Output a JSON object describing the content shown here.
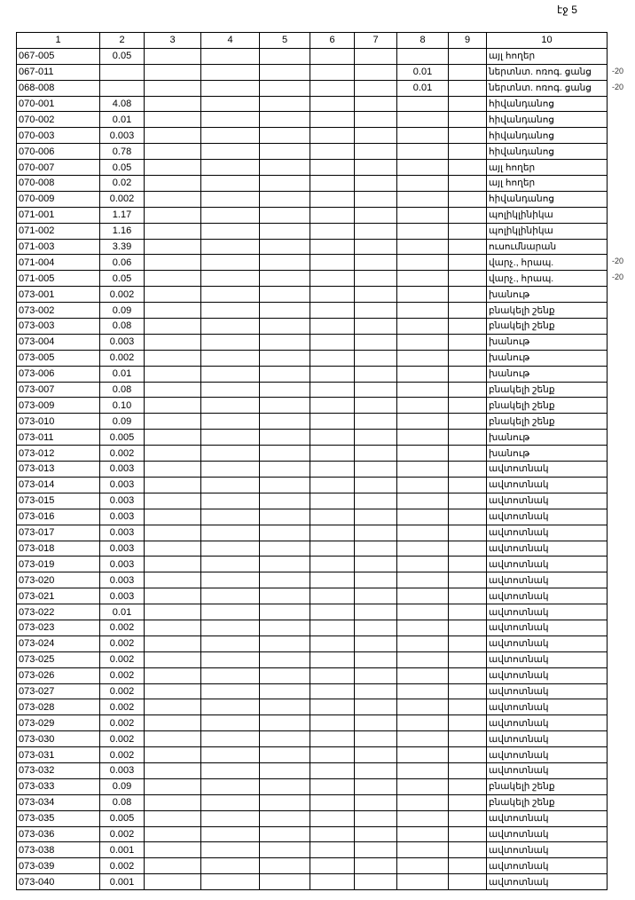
{
  "page_label": "էջ 5",
  "columns": [
    "1",
    "2",
    "3",
    "4",
    "5",
    "6",
    "7",
    "8",
    "9",
    "10"
  ],
  "rows": [
    {
      "id": "067-005",
      "c2": "0.05",
      "c8": "",
      "c10": "այլ հողեր"
    },
    {
      "id": "067-011",
      "c2": "",
      "c8": "0.01",
      "c10": "ներտնտ. ոռոգ. ցանց",
      "note": "-20"
    },
    {
      "id": "068-008",
      "c2": "",
      "c8": "0.01",
      "c10": "ներտնտ. ոռոգ. ցանց",
      "note": "-20"
    },
    {
      "id": "070-001",
      "c2": "4.08",
      "c8": "",
      "c10": "հիվանդանոց"
    },
    {
      "id": "070-002",
      "c2": "0.01",
      "c8": "",
      "c10": "հիվանդանոց"
    },
    {
      "id": "070-003",
      "c2": "0.003",
      "c8": "",
      "c10": "հիվանդանոց"
    },
    {
      "id": "070-006",
      "c2": "0.78",
      "c8": "",
      "c10": "հիվանդանոց"
    },
    {
      "id": "070-007",
      "c2": "0.05",
      "c8": "",
      "c10": "այլ հողեր"
    },
    {
      "id": "070-008",
      "c2": "0.02",
      "c8": "",
      "c10": "այլ հողեր"
    },
    {
      "id": "070-009",
      "c2": "0.002",
      "c8": "",
      "c10": "հիվանդանոց"
    },
    {
      "id": "071-001",
      "c2": "1.17",
      "c8": "",
      "c10": "պոլիկլինիկա"
    },
    {
      "id": "071-002",
      "c2": "1.16",
      "c8": "",
      "c10": "պոլիկլինիկա"
    },
    {
      "id": "071-003",
      "c2": "3.39",
      "c8": "",
      "c10": "ուսումնարան"
    },
    {
      "id": "071-004",
      "c2": "0.06",
      "c8": "",
      "c10": "վարչ., հրապ.",
      "note": "-20"
    },
    {
      "id": "071-005",
      "c2": "0.05",
      "c8": "",
      "c10": "վարչ., հրապ.",
      "note": "-20"
    },
    {
      "id": "073-001",
      "c2": "0.002",
      "c8": "",
      "c10": "խանութ"
    },
    {
      "id": "073-002",
      "c2": "0.09",
      "c8": "",
      "c10": "բնակելի շենք"
    },
    {
      "id": "073-003",
      "c2": "0.08",
      "c8": "",
      "c10": "բնակելի շենք"
    },
    {
      "id": "073-004",
      "c2": "0.003",
      "c8": "",
      "c10": "խանութ"
    },
    {
      "id": "073-005",
      "c2": "0.002",
      "c8": "",
      "c10": "խանութ"
    },
    {
      "id": "073-006",
      "c2": "0.01",
      "c8": "",
      "c10": "խանութ"
    },
    {
      "id": "073-007",
      "c2": "0.08",
      "c8": "",
      "c10": "բնակելի շենք"
    },
    {
      "id": "073-009",
      "c2": "0.10",
      "c8": "",
      "c10": "բնակելի շենք"
    },
    {
      "id": "073-010",
      "c2": "0.09",
      "c8": "",
      "c10": "բնակելի շենք"
    },
    {
      "id": "073-011",
      "c2": "0.005",
      "c8": "",
      "c10": "խանութ"
    },
    {
      "id": "073-012",
      "c2": "0.002",
      "c8": "",
      "c10": "խանութ"
    },
    {
      "id": "073-013",
      "c2": "0.003",
      "c8": "",
      "c10": "ավտոտնակ"
    },
    {
      "id": "073-014",
      "c2": "0.003",
      "c8": "",
      "c10": "ավտոտնակ"
    },
    {
      "id": "073-015",
      "c2": "0.003",
      "c8": "",
      "c10": "ավտոտնակ"
    },
    {
      "id": "073-016",
      "c2": "0.003",
      "c8": "",
      "c10": "ավտոտնակ"
    },
    {
      "id": "073-017",
      "c2": "0.003",
      "c8": "",
      "c10": "ավտոտնակ"
    },
    {
      "id": "073-018",
      "c2": "0.003",
      "c8": "",
      "c10": "ավտոտնակ"
    },
    {
      "id": "073-019",
      "c2": "0.003",
      "c8": "",
      "c10": "ավտոտնակ"
    },
    {
      "id": "073-020",
      "c2": "0.003",
      "c8": "",
      "c10": "ավտոտնակ"
    },
    {
      "id": "073-021",
      "c2": "0.003",
      "c8": "",
      "c10": "ավտոտնակ"
    },
    {
      "id": "073-022",
      "c2": "0.01",
      "c8": "",
      "c10": "ավտոտնակ"
    },
    {
      "id": "073-023",
      "c2": "0.002",
      "c8": "",
      "c10": "ավտոտնակ"
    },
    {
      "id": "073-024",
      "c2": "0.002",
      "c8": "",
      "c10": "ավտոտնակ"
    },
    {
      "id": "073-025",
      "c2": "0.002",
      "c8": "",
      "c10": "ավտոտնակ"
    },
    {
      "id": "073-026",
      "c2": "0.002",
      "c8": "",
      "c10": "ավտոտնակ"
    },
    {
      "id": "073-027",
      "c2": "0.002",
      "c8": "",
      "c10": "ավտոտնակ"
    },
    {
      "id": "073-028",
      "c2": "0.002",
      "c8": "",
      "c10": "ավտոտնակ"
    },
    {
      "id": "073-029",
      "c2": "0.002",
      "c8": "",
      "c10": "ավտոտնակ"
    },
    {
      "id": "073-030",
      "c2": "0.002",
      "c8": "",
      "c10": "ավտոտնակ"
    },
    {
      "id": "073-031",
      "c2": "0.002",
      "c8": "",
      "c10": "ավտոտնակ"
    },
    {
      "id": "073-032",
      "c2": "0.003",
      "c8": "",
      "c10": "ավտոտնակ"
    },
    {
      "id": "073-033",
      "c2": "0.09",
      "c8": "",
      "c10": "բնակելի շենք"
    },
    {
      "id": "073-034",
      "c2": "0.08",
      "c8": "",
      "c10": "բնակելի շենք"
    },
    {
      "id": "073-035",
      "c2": "0.005",
      "c8": "",
      "c10": "ավտոտնակ"
    },
    {
      "id": "073-036",
      "c2": "0.002",
      "c8": "",
      "c10": "ավտոտնակ"
    },
    {
      "id": "073-038",
      "c2": "0.001",
      "c8": "",
      "c10": "ավտոտնակ"
    },
    {
      "id": "073-039",
      "c2": "0.002",
      "c8": "",
      "c10": "ավտոտնակ"
    },
    {
      "id": "073-040",
      "c2": "0.001",
      "c8": "",
      "c10": "ավտոտնակ"
    }
  ]
}
